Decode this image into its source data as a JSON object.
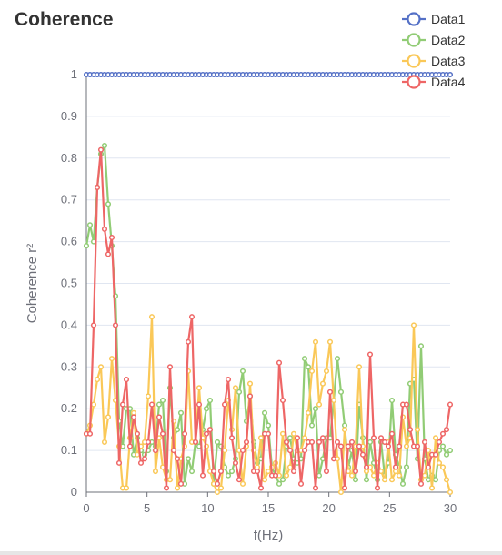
{
  "title": "Coherence",
  "colors": {
    "Data1": "#5470c6",
    "Data2": "#91cc75",
    "Data3": "#fac858",
    "Data4": "#ee6666",
    "grid": "#e0e6f1",
    "axis": "#6e7079"
  },
  "chart_data": {
    "type": "line",
    "title": "Coherence",
    "xlabel": "f(Hz)",
    "ylabel": "Coherence r²",
    "xlim": [
      0,
      30
    ],
    "ylim": [
      0,
      1
    ],
    "xticks": [
      0,
      5,
      10,
      15,
      20,
      25,
      30
    ],
    "yticks": [
      0,
      0.1,
      0.2,
      0.3,
      0.4,
      0.5,
      0.6,
      0.7,
      0.8,
      0.9,
      1
    ],
    "grid": true,
    "legend_position": "top-right",
    "x_step": 0.3,
    "series": [
      {
        "name": "Data1",
        "values": [
          1,
          1,
          1,
          1,
          1,
          1,
          1,
          1,
          1,
          1,
          1,
          1,
          1,
          1,
          1,
          1,
          1,
          1,
          1,
          1,
          1,
          1,
          1,
          1,
          1,
          1,
          1,
          1,
          1,
          1,
          1,
          1,
          1,
          1,
          1,
          1,
          1,
          1,
          1,
          1,
          1,
          1,
          1,
          1,
          1,
          1,
          1,
          1,
          1,
          1,
          1,
          1,
          1,
          1,
          1,
          1,
          1,
          1,
          1,
          1,
          1,
          1,
          1,
          1,
          1,
          1,
          1,
          1,
          1,
          1,
          1,
          1,
          1,
          1,
          1,
          1,
          1,
          1,
          1,
          1,
          1,
          1,
          1,
          1,
          1,
          1,
          1,
          1,
          1,
          1,
          1,
          1,
          1,
          1,
          1,
          1,
          1,
          1,
          1,
          1,
          1
        ]
      },
      {
        "name": "Data2",
        "values": [
          0.59,
          0.64,
          0.6,
          0.73,
          0.81,
          0.83,
          0.69,
          0.59,
          0.47,
          0.17,
          0.11,
          0.2,
          0.2,
          0.09,
          0.13,
          0.1,
          0.09,
          0.1,
          0.12,
          0.11,
          0.21,
          0.22,
          0.05,
          0.25,
          0.13,
          0.15,
          0.19,
          0.02,
          0.08,
          0.05,
          0.12,
          0.11,
          0.15,
          0.2,
          0.22,
          0.02,
          0.12,
          0.11,
          0.06,
          0.04,
          0.05,
          0.08,
          0.24,
          0.29,
          0.17,
          0.23,
          0.12,
          0.07,
          0.08,
          0.19,
          0.16,
          0.06,
          0.04,
          0.02,
          0.03,
          0.11,
          0.13,
          0.08,
          0.07,
          0.08,
          0.32,
          0.3,
          0.16,
          0.2,
          0.04,
          0.08,
          0.13,
          0.13,
          0.22,
          0.32,
          0.24,
          0.16,
          0.06,
          0.1,
          0.03,
          0.21,
          0.13,
          0.03,
          0.12,
          0.07,
          0.03,
          0.12,
          0.04,
          0.07,
          0.22,
          0.09,
          0.06,
          0.02,
          0.06,
          0.26,
          0.27,
          0.08,
          0.35,
          0.08,
          0.03,
          0.04,
          0.03,
          0.1,
          0.11,
          0.09,
          0.1
        ]
      },
      {
        "name": "Data3",
        "values": [
          0.14,
          0.16,
          0.21,
          0.27,
          0.3,
          0.12,
          0.18,
          0.32,
          0.22,
          0.11,
          0.01,
          0.01,
          0.13,
          0.19,
          0.09,
          0.11,
          0.12,
          0.23,
          0.42,
          0.05,
          0.13,
          0.06,
          0.03,
          0.03,
          0.17,
          0.01,
          0.08,
          0.11,
          0.29,
          0.12,
          0.12,
          0.25,
          0.13,
          0.11,
          0.05,
          0.02,
          0.0,
          0.01,
          0.1,
          0.22,
          0.15,
          0.25,
          0.1,
          0.02,
          0.11,
          0.26,
          0.1,
          0.06,
          0.13,
          0.03,
          0.05,
          0.06,
          0.07,
          0.04,
          0.14,
          0.04,
          0.06,
          0.14,
          0.1,
          0.1,
          0.13,
          0.19,
          0.29,
          0.36,
          0.21,
          0.26,
          0.29,
          0.36,
          0.22,
          0.08,
          0.0,
          0.15,
          0.05,
          0.04,
          0.11,
          0.3,
          0.11,
          0.05,
          0.06,
          0.04,
          0.07,
          0.05,
          0.03,
          0.12,
          0.03,
          0.05,
          0.04,
          0.18,
          0.11,
          0.13,
          0.4,
          0.15,
          0.03,
          0.04,
          0.1,
          0.01,
          0.13,
          0.07,
          0.06,
          0.03,
          0.0
        ]
      },
      {
        "name": "Data4",
        "values": [
          0.14,
          0.14,
          0.4,
          0.73,
          0.82,
          0.63,
          0.57,
          0.61,
          0.4,
          0.07,
          0.21,
          0.27,
          0.11,
          0.18,
          0.14,
          0.07,
          0.08,
          0.12,
          0.21,
          0.1,
          0.18,
          0.14,
          0.01,
          0.3,
          0.1,
          0.08,
          0.02,
          0.14,
          0.36,
          0.42,
          0.12,
          0.21,
          0.04,
          0.14,
          0.15,
          0.05,
          0.02,
          0.05,
          0.21,
          0.27,
          0.13,
          0.07,
          0.03,
          0.1,
          0.12,
          0.23,
          0.05,
          0.05,
          0.01,
          0.14,
          0.14,
          0.04,
          0.04,
          0.31,
          0.22,
          0.12,
          0.1,
          0.05,
          0.13,
          0.02,
          0.1,
          0.12,
          0.12,
          0.01,
          0.12,
          0.13,
          0.05,
          0.24,
          0.08,
          0.12,
          0.11,
          0.01,
          0.11,
          0.12,
          0.05,
          0.11,
          0.09,
          0.06,
          0.33,
          0.13,
          0.01,
          0.13,
          0.12,
          0.11,
          0.14,
          0.06,
          0.11,
          0.21,
          0.21,
          0.15,
          0.11,
          0.11,
          0.02,
          0.12,
          0.06,
          0.09,
          0.09,
          0.12,
          0.14,
          0.15,
          0.21
        ]
      }
    ]
  }
}
